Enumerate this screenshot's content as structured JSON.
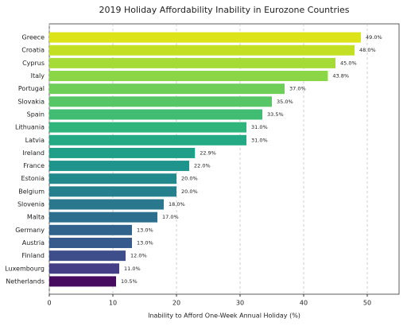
{
  "chart_data": {
    "type": "barh",
    "title": "2019 Holiday Affordability Inability in Eurozone Countries",
    "x_label": "Inability to Afford One-Week Annual Holiday (%)",
    "categories": [
      "Greece",
      "Croatia",
      "Cyprus",
      "Italy",
      "Portugal",
      "Slovakia",
      "Spain",
      "Lithuania",
      "Latvia",
      "Ireland",
      "France",
      "Estonia",
      "Belgium",
      "Slovenia",
      "Malta",
      "Germany",
      "Austria",
      "Finland",
      "Luxembourg",
      "Netherlands"
    ],
    "values": [
      49.0,
      48.0,
      45.0,
      43.8,
      37.0,
      35.0,
      33.5,
      31.0,
      31.0,
      22.9,
      22.0,
      20.0,
      20.0,
      18.0,
      17.0,
      13.0,
      13.0,
      12.0,
      11.0,
      10.5
    ],
    "value_labels": [
      "49.0%",
      "48.0%",
      "45.0%",
      "43.8%",
      "37.0%",
      "35.0%",
      "33.5%",
      "31.0%",
      "31.0%",
      "22.9%",
      "22.0%",
      "20.0%",
      "20.0%",
      "18.0%",
      "17.0%",
      "13.0%",
      "13.0%",
      "12.0%",
      "11.0%",
      "10.5%"
    ],
    "colors": [
      "#dce319",
      "#c2df23",
      "#a5db36",
      "#8bd646",
      "#6ece58",
      "#56c667",
      "#40bd72",
      "#2fb47c",
      "#23a983",
      "#1f9f88",
      "#1f948c",
      "#228a8d",
      "#25808e",
      "#29788e",
      "#2c6e8e",
      "#31648d",
      "#365a8c",
      "#3d4e8a",
      "#433e85",
      "#460b5e"
    ],
    "xlim": [
      0,
      55
    ],
    "xticks": [
      0,
      10,
      20,
      30,
      40,
      50
    ],
    "grid": true
  }
}
